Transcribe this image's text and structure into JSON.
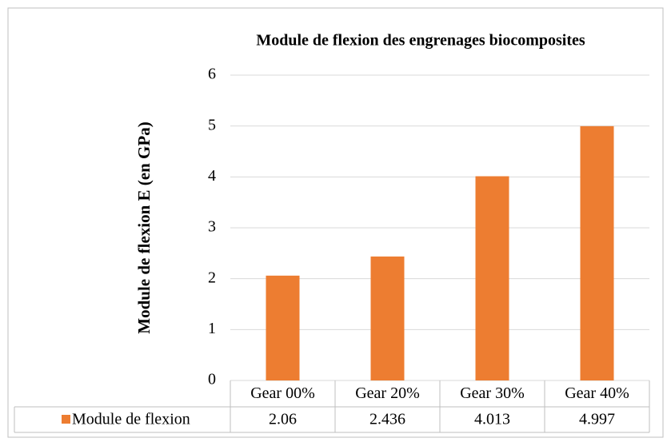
{
  "chart_data": {
    "type": "bar",
    "title": "Module de flexion des engrenages biocomposites",
    "y_label": "Module de flexion E (en GPa)",
    "categories": [
      "Gear 00%",
      "Gear 20%",
      "Gear 30%",
      "Gear 40%"
    ],
    "series": [
      {
        "name": "Module de flexion",
        "color": "#ed7d31",
        "values": [
          2.06,
          2.436,
          4.013,
          4.997
        ]
      }
    ],
    "ylim": [
      0,
      6
    ],
    "yticks": [
      0,
      1,
      2,
      3,
      4,
      5,
      6
    ],
    "grid": true,
    "data_table": true
  }
}
